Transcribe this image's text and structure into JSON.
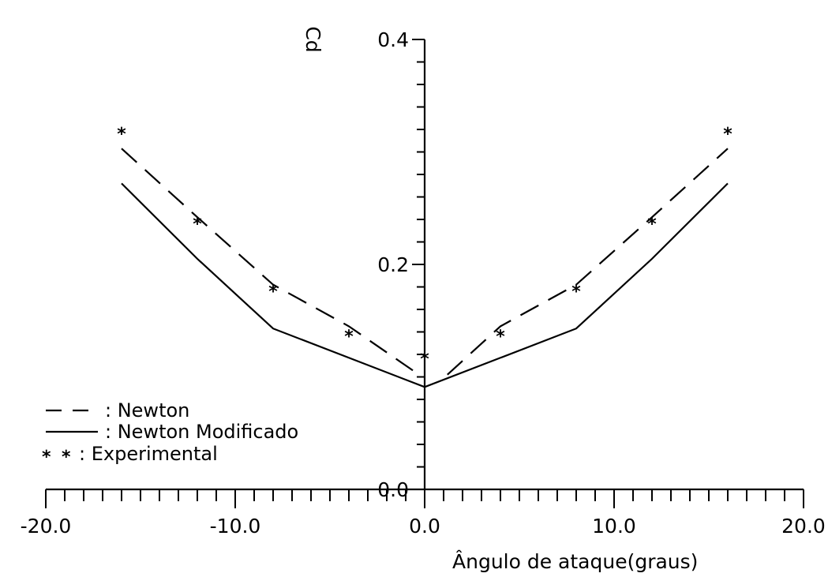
{
  "chart_data": {
    "type": "line",
    "title": "",
    "xlabel": "Ângulo de ataque(graus)",
    "ylabel": "Cd",
    "xlim": [
      -20,
      20
    ],
    "ylim": [
      0,
      0.4
    ],
    "x_ticks": [
      "-20.0",
      "-10.0",
      "0.0",
      "10.0",
      "20.0"
    ],
    "y_ticks": [
      "0.0",
      "0.2",
      "0.4"
    ],
    "x_tick_values": [
      -20,
      -10,
      0,
      10,
      20
    ],
    "y_tick_values": [
      0,
      0.2,
      0.4
    ],
    "x_minor_step": 1,
    "y_minor_step": 0.02,
    "grid": false,
    "legend_position": "bottom-left",
    "series": [
      {
        "name": "Newton",
        "style": "dashed",
        "x": [
          -16,
          -12,
          -8,
          -4,
          0,
          4,
          8,
          12,
          16
        ],
        "y": [
          0.303,
          0.242,
          0.182,
          0.145,
          0.102,
          0.145,
          0.182,
          0.242,
          0.303
        ]
      },
      {
        "name": "Newton Modificado",
        "style": "solid",
        "x": [
          -16,
          -12,
          -8,
          -4,
          0,
          4,
          8,
          12,
          16
        ],
        "y": [
          0.272,
          0.205,
          0.143,
          0.117,
          0.091,
          0.117,
          0.143,
          0.205,
          0.272
        ]
      },
      {
        "name": "Experimental",
        "style": "markers",
        "marker": "*",
        "x": [
          -16,
          -12,
          -8,
          -4,
          0,
          4,
          8,
          12,
          16
        ],
        "y": [
          0.32,
          0.24,
          0.18,
          0.14,
          0.12,
          0.14,
          0.18,
          0.24,
          0.32
        ]
      }
    ],
    "legend": [
      {
        "symbol": "— —",
        "label": ": Newton"
      },
      {
        "symbol": "———",
        "label": ": Newton Modificado"
      },
      {
        "symbol": "* *",
        "label": ": Experimental"
      }
    ]
  }
}
